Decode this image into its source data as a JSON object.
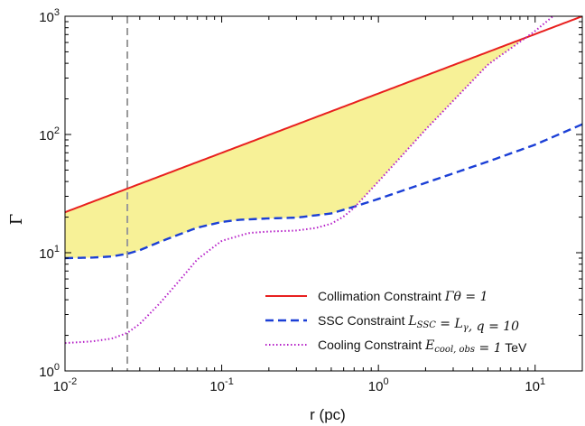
{
  "chart_data": {
    "type": "line",
    "xlabel": "r (pc)",
    "ylabel": "Γ",
    "xscale": "log",
    "yscale": "log",
    "xlim": [
      0.01,
      20
    ],
    "ylim": [
      1,
      1000
    ],
    "grid": false,
    "legend_position": "bottom-right",
    "x_ticks": [
      {
        "value": 0.01,
        "base": "10",
        "exp": "-2"
      },
      {
        "value": 0.1,
        "base": "10",
        "exp": "-1"
      },
      {
        "value": 1,
        "base": "10",
        "exp": "0"
      },
      {
        "value": 10,
        "base": "10",
        "exp": "1"
      }
    ],
    "y_ticks": [
      {
        "value": 1,
        "base": "10",
        "exp": "0"
      },
      {
        "value": 10,
        "base": "10",
        "exp": "1"
      },
      {
        "value": 100,
        "base": "10",
        "exp": "2"
      },
      {
        "value": 1000,
        "base": "10",
        "exp": "3"
      }
    ],
    "vertical_line": {
      "x": 0.025,
      "color": "#999999"
    },
    "fill_region": {
      "color": "#f7f197",
      "between": "allowed region between curves"
    },
    "series": [
      {
        "name": "Collimation Constraint",
        "math": "Γθ = 1",
        "color": "#e8201f",
        "style": "solid",
        "x": [
          0.01,
          20
        ],
        "y": [
          22,
          1000
        ]
      },
      {
        "name": "SSC Constraint",
        "math": "L_SSC = L_γ, q = 10",
        "color": "#1b3fd6",
        "style": "dashed",
        "x": [
          0.01,
          0.015,
          0.02,
          0.025,
          0.03,
          0.04,
          0.05,
          0.07,
          0.1,
          0.13,
          0.2,
          0.3,
          0.5,
          0.7,
          1,
          2,
          5,
          10,
          20
        ],
        "y": [
          9,
          9.1,
          9.3,
          9.8,
          10.5,
          12.3,
          13.8,
          16.3,
          18.2,
          19,
          19.5,
          19.8,
          21.5,
          24.5,
          28.5,
          39,
          59,
          82,
          122
        ]
      },
      {
        "name": "Cooling Constraint",
        "math": "E_cool,obs = 1 TeV",
        "unit_text": "TeV",
        "color": "#b620c8",
        "style": "dotted",
        "x": [
          0.01,
          0.015,
          0.02,
          0.025,
          0.03,
          0.04,
          0.05,
          0.07,
          0.1,
          0.15,
          0.2,
          0.3,
          0.4,
          0.5,
          0.6,
          0.7,
          1,
          2,
          5,
          10,
          13
        ],
        "y": [
          1.72,
          1.78,
          1.88,
          2.1,
          2.5,
          3.7,
          5.2,
          8.8,
          12.6,
          14.7,
          15.1,
          15.4,
          16.2,
          17.6,
          20.2,
          24,
          40,
          110,
          390,
          750,
          1000
        ]
      }
    ]
  }
}
